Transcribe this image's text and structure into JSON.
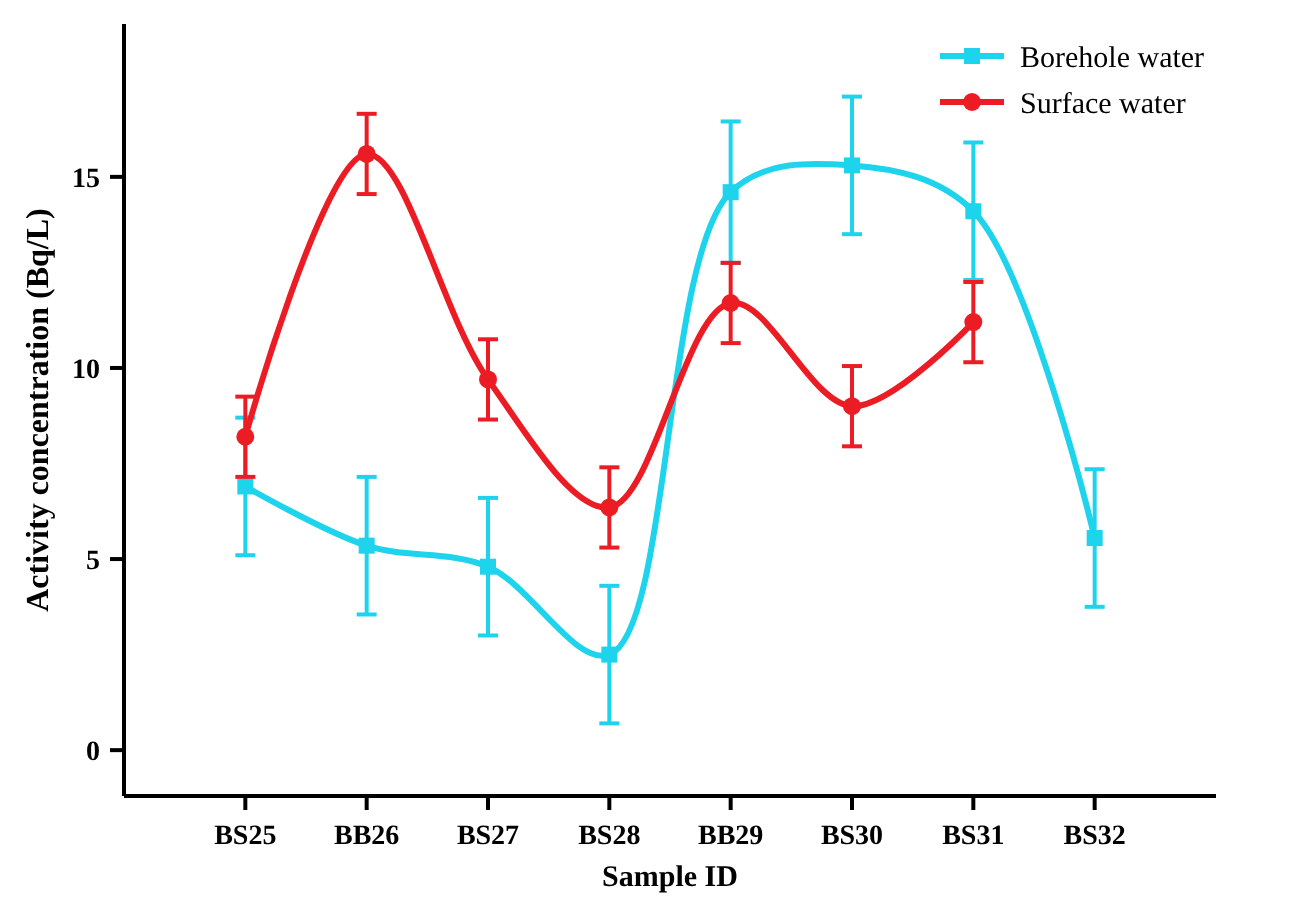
{
  "chart_data": {
    "type": "line",
    "xlabel": "Sample ID",
    "ylabel": "Activity concentration (Bq/L)",
    "categories": [
      "BS25",
      "BB26",
      "BS27",
      "BS28",
      "BB29",
      "BS30",
      "BS31",
      "BS32"
    ],
    "ylim": [
      -1.2,
      19
    ],
    "yticks": [
      0,
      5,
      10,
      15
    ],
    "grid": false,
    "legend": "top right",
    "series": [
      {
        "name": "Borehole water",
        "color": "#1ed3ec",
        "marker": "square",
        "values": [
          6.9,
          5.35,
          4.8,
          2.5,
          14.6,
          15.3,
          14.1,
          5.55
        ],
        "errors": [
          1.8,
          1.8,
          1.8,
          1.8,
          1.85,
          1.8,
          1.8,
          1.8
        ]
      },
      {
        "name": "Surface water",
        "color": "#ec1c24",
        "marker": "circle",
        "values": [
          8.2,
          15.6,
          9.7,
          6.35,
          11.7,
          9.0,
          11.2,
          null
        ],
        "errors": [
          1.05,
          1.05,
          1.05,
          1.05,
          1.05,
          1.05,
          1.05,
          null
        ]
      }
    ]
  }
}
